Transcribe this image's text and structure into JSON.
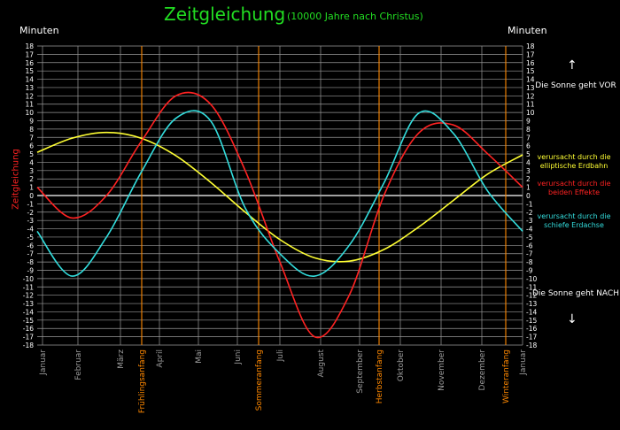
{
  "title": "Zeitgleichung",
  "subtitle": "(10000 Jahre nach Christus)",
  "unit_left": "Minuten",
  "unit_right": "Minuten",
  "y_axis_label": "Zeitgleichung",
  "top_note": "Die Sonne geht VOR",
  "bottom_note": "Die Sonne geht NACH",
  "legend": [
    {
      "label": "verursacht durch die elliptische Erdbahn",
      "color": "#ffff33"
    },
    {
      "label": "verursacht durch die beiden Effekte",
      "color": "#ff2222"
    },
    {
      "label": "verursacht durch die schiefe Erdachse",
      "color": "#33dddd"
    }
  ],
  "chart_data": {
    "type": "line",
    "title": "Zeitgleichung",
    "ylabel": "Zeitgleichung",
    "ylim": [
      -18,
      18
    ],
    "yticks": [
      18,
      17,
      16,
      15,
      14,
      13,
      12,
      11,
      10,
      9,
      8,
      7,
      6,
      5,
      4,
      3,
      2,
      1,
      0,
      -1,
      -2,
      -3,
      -4,
      -5,
      -6,
      -7,
      -8,
      -9,
      -10,
      -11,
      -12,
      -13,
      -14,
      -15,
      -16,
      -17,
      -18
    ],
    "month_labels": [
      "Januar",
      "Februar",
      "März",
      "April",
      "Mai",
      "Juni",
      "Juli",
      "August",
      "September",
      "Oktober",
      "November",
      "Dezember",
      "Januar"
    ],
    "season_labels": [
      "Frühlingsanfang",
      "Sommeranfang",
      "Herbstanfang",
      "Winteranfang"
    ],
    "season_color": "#ff8800",
    "grid": true,
    "series": [
      {
        "name": "verursacht durch die elliptische Erdbahn",
        "color": "#ffff33",
        "points": [
          [
            0,
            5.2
          ],
          [
            1,
            6.9
          ],
          [
            2,
            7.6
          ],
          [
            3,
            6.9
          ],
          [
            4,
            4.8
          ],
          [
            5,
            1.6
          ],
          [
            6,
            -2.0
          ],
          [
            7,
            -5.3
          ],
          [
            8,
            -7.5
          ],
          [
            9,
            -7.9
          ],
          [
            10,
            -6.5
          ],
          [
            11,
            -3.8
          ],
          [
            12,
            -0.6
          ],
          [
            13,
            2.6
          ],
          [
            14,
            4.9
          ]
        ]
      },
      {
        "name": "verursacht durch die beiden Effekte",
        "color": "#ff2222",
        "points": [
          [
            0,
            1.0
          ],
          [
            1,
            -2.7
          ],
          [
            2,
            0.0
          ],
          [
            3,
            6.5
          ],
          [
            4,
            12.0
          ],
          [
            5,
            11.0
          ],
          [
            6,
            3.0
          ],
          [
            7,
            -8.0
          ],
          [
            8,
            -17.0
          ],
          [
            9,
            -12.0
          ],
          [
            10,
            0.0
          ],
          [
            11,
            7.5
          ],
          [
            12,
            8.5
          ],
          [
            13,
            5.0
          ],
          [
            14,
            1.0
          ]
        ]
      },
      {
        "name": "verursacht durch die schiefe Erdachse",
        "color": "#33dddd",
        "points": [
          [
            0,
            -4.3
          ],
          [
            1,
            -9.7
          ],
          [
            2,
            -5.0
          ],
          [
            3,
            2.8
          ],
          [
            4,
            9.3
          ],
          [
            5,
            9.0
          ],
          [
            6,
            -1.5
          ],
          [
            7,
            -7.0
          ],
          [
            8,
            -9.7
          ],
          [
            9,
            -6.0
          ],
          [
            10,
            1.5
          ],
          [
            11,
            9.9
          ],
          [
            12,
            7.5
          ],
          [
            13,
            0.5
          ],
          [
            14,
            -4.3
          ]
        ]
      }
    ]
  }
}
